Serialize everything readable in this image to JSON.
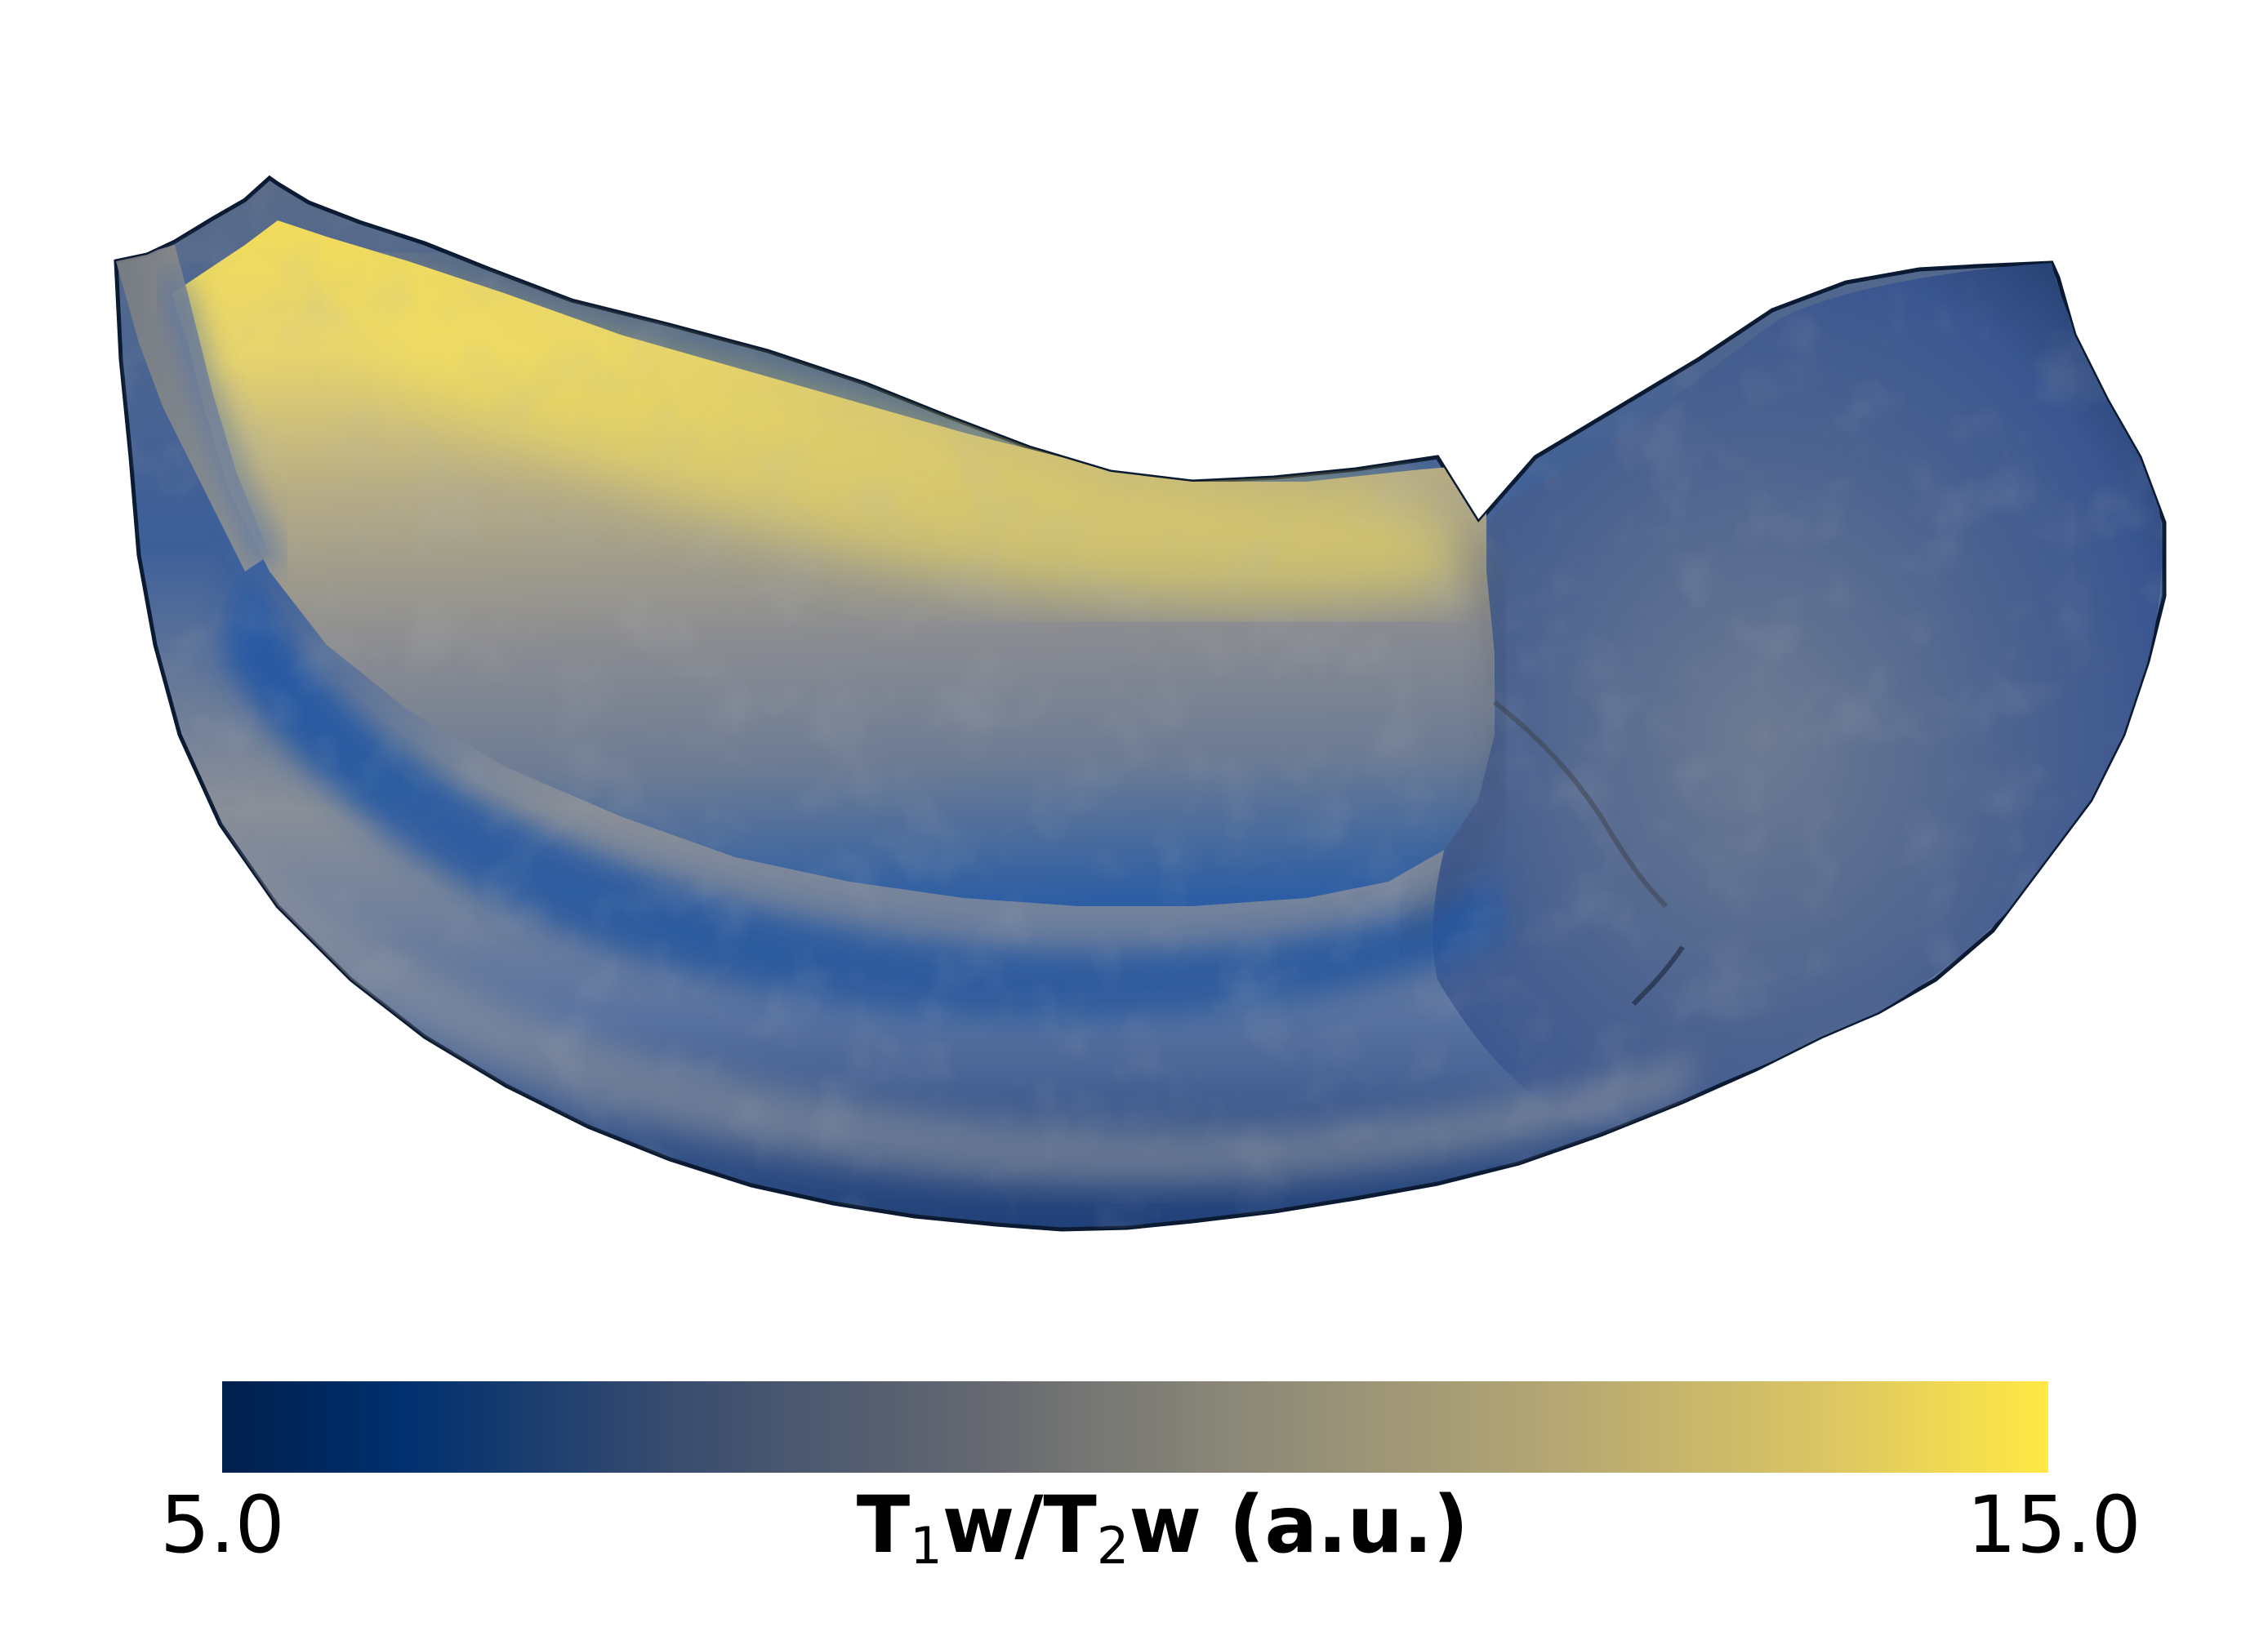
{
  "colorbar": {
    "min_label": "5.0",
    "max_label": "15.0",
    "title_parts": [
      "T",
      "1",
      "w/T",
      "2",
      "w (a.u.)"
    ],
    "min_value": 5.0,
    "max_value": 15.0,
    "colormap": [
      "#00204d",
      "#00306f",
      "#3a4d6f",
      "#666970",
      "#8a8778",
      "#b2a574",
      "#dcc663",
      "#ffe945"
    ]
  },
  "render": {
    "colors": {
      "low": "#1d4f96",
      "mid": "#8e8e8e",
      "high": "#f2de5a",
      "edge": "#0b1a33",
      "background": "#ffffff"
    }
  }
}
